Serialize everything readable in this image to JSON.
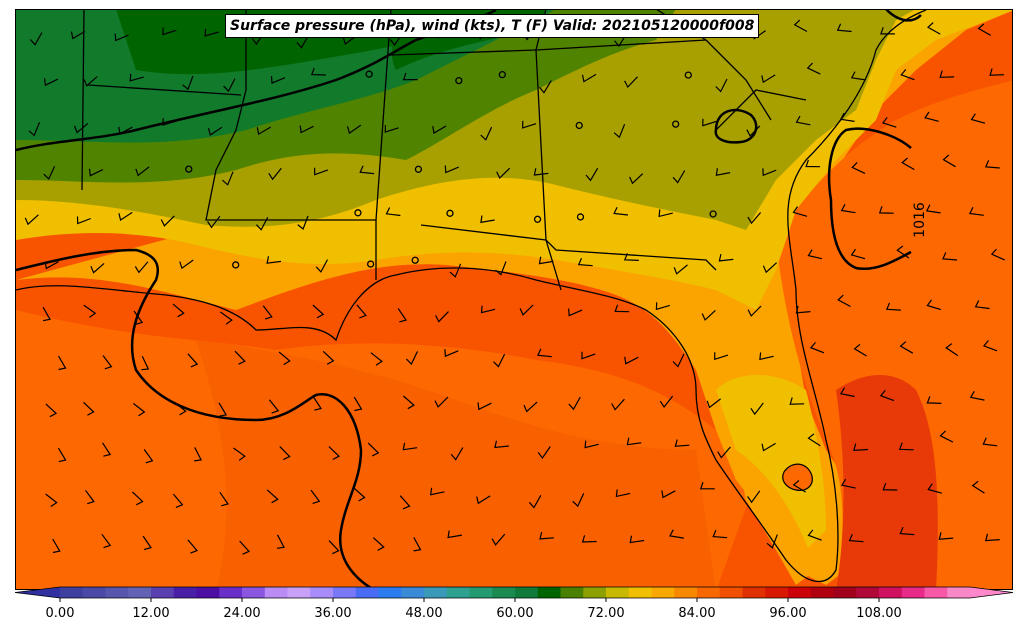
{
  "title": "Surface pressure (hPa), wind (kts), T (F) Valid: 202105120000f008",
  "isobar_label": "1016",
  "colorbar": {
    "ticks": [
      "0.00",
      "12.00",
      "24.00",
      "36.00",
      "48.00",
      "60.00",
      "72.00",
      "84.00",
      "96.00",
      "108.00"
    ],
    "colors": [
      "#3f3f9f",
      "#4a4aa6",
      "#5656ad",
      "#6262b4",
      "#5a3fb0",
      "#4a1fa8",
      "#4d0fa3",
      "#6a2fc8",
      "#8a55e0",
      "#b88cf4",
      "#c8a0f8",
      "#a88cf8",
      "#7878f8",
      "#4a6cf4",
      "#2c7cf0",
      "#3a8ad8",
      "#3a98b8",
      "#2ea090",
      "#239a70",
      "#1a8a50",
      "#0f7a3a",
      "#006400",
      "#4a8000",
      "#8ca000",
      "#c8b800",
      "#f0c000",
      "#f8a800",
      "#f88800",
      "#f86800",
      "#f05000",
      "#e03000",
      "#d81800",
      "#cc0008",
      "#b00010",
      "#a0001c",
      "#b00838",
      "#d01060",
      "#e82a88",
      "#f858a8",
      "#f888c8"
    ],
    "under_color": "#3030a0",
    "over_color": "#ff88cc"
  },
  "colors": {
    "ocean_far": "#f85400",
    "ocean_near": "#fe6800",
    "warm_coast": "#fba400",
    "yellow_band": "#efbf00",
    "olive": "#a7a000",
    "light_green": "#4f8300",
    "mid_green": "#117a2b",
    "dark_green": "#006400",
    "hot_red": "#e83a08",
    "pale_hot": "#f06d3a"
  }
}
